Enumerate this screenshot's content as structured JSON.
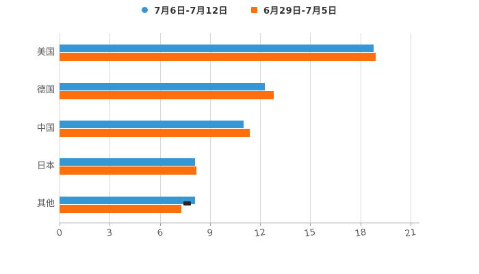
{
  "chart_data": {
    "type": "bar",
    "orientation": "horizontal",
    "title": "",
    "xlabel": "",
    "ylabel": "",
    "categories": [
      "美国",
      "德国",
      "中国",
      "日本",
      "其他"
    ],
    "series": [
      {
        "name": "7月6日-7月12日",
        "color": "#3598D4",
        "marker": "circle",
        "values": [
          18.8,
          12.3,
          11.0,
          8.1,
          8.1
        ]
      },
      {
        "name": "6月29日-7月5日",
        "color": "#FF6F0E",
        "marker": "square",
        "values": [
          18.9,
          12.8,
          11.4,
          8.2,
          7.3
        ]
      }
    ],
    "x_ticks": [
      0,
      3,
      6,
      9,
      12,
      15,
      18,
      21
    ],
    "xlim": [
      0,
      21.6
    ],
    "grid": true,
    "legend_position": "top-center"
  },
  "colors": {
    "background": "#FFFFFF",
    "gridline": "#D6D6D6",
    "axis": "#9E9E9E",
    "tick_label": "#595959",
    "category_label": "#595959",
    "legend_text": "#333333"
  }
}
